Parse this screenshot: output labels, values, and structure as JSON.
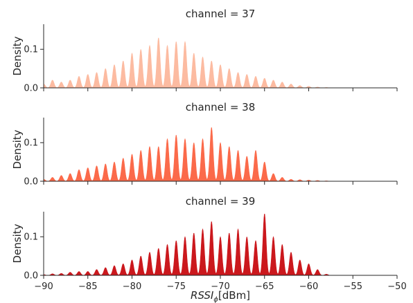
{
  "chart_data": {
    "type": "area",
    "xlabel": {
      "base": "RSSI",
      "sub": "ϕ",
      "unit": "[dBm]"
    },
    "ylabel": "Density",
    "xlim": [
      -90,
      -50
    ],
    "ylim": [
      0,
      0.165
    ],
    "xticks": [
      -90,
      -85,
      -80,
      -75,
      -70,
      -65,
      -60,
      -55,
      -50
    ],
    "yticks": [
      0.0,
      0.1
    ],
    "grid": false,
    "panels": [
      {
        "title": "channel = 37",
        "color": "#fcbba1",
        "peaks": {
          "x": [
            -90,
            -89,
            -88,
            -87,
            -86,
            -85,
            -84,
            -83,
            -82,
            -81,
            -80,
            -79,
            -78,
            -77,
            -76,
            -75,
            -74,
            -73,
            -72,
            -71,
            -70,
            -69,
            -68,
            -67,
            -66,
            -65,
            -64,
            -63,
            -62,
            -61,
            -60,
            -59,
            -58
          ],
          "y": [
            0.01,
            0.02,
            0.015,
            0.02,
            0.03,
            0.035,
            0.04,
            0.05,
            0.06,
            0.07,
            0.09,
            0.1,
            0.11,
            0.13,
            0.11,
            0.12,
            0.12,
            0.09,
            0.08,
            0.07,
            0.06,
            0.05,
            0.04,
            0.035,
            0.03,
            0.025,
            0.02,
            0.015,
            0.01,
            0.006,
            0.004,
            0.002,
            0.001
          ]
        }
      },
      {
        "title": "channel = 38",
        "color": "#fb6a4a",
        "peaks": {
          "x": [
            -90,
            -89,
            -88,
            -87,
            -86,
            -85,
            -84,
            -83,
            -82,
            -81,
            -80,
            -79,
            -78,
            -77,
            -76,
            -75,
            -74,
            -73,
            -72,
            -71,
            -70,
            -69,
            -68,
            -67,
            -66,
            -65,
            -64,
            -63,
            -62,
            -61,
            -60,
            -59,
            -58
          ],
          "y": [
            0.005,
            0.01,
            0.015,
            0.02,
            0.03,
            0.035,
            0.04,
            0.045,
            0.05,
            0.06,
            0.07,
            0.08,
            0.09,
            0.09,
            0.11,
            0.12,
            0.11,
            0.1,
            0.11,
            0.14,
            0.1,
            0.09,
            0.08,
            0.065,
            0.08,
            0.05,
            0.02,
            0.01,
            0.005,
            0.004,
            0.003,
            0.002,
            0.001
          ]
        }
      },
      {
        "title": "channel = 39",
        "color": "#cb181d",
        "peaks": {
          "x": [
            -90,
            -89,
            -88,
            -87,
            -86,
            -85,
            -84,
            -83,
            -82,
            -81,
            -80,
            -79,
            -78,
            -77,
            -76,
            -75,
            -74,
            -73,
            -72,
            -71,
            -70,
            -69,
            -68,
            -67,
            -66,
            -65,
            -64,
            -63,
            -62,
            -61,
            -60,
            -59,
            -58
          ],
          "y": [
            0.002,
            0.004,
            0.005,
            0.008,
            0.01,
            0.01,
            0.015,
            0.02,
            0.025,
            0.03,
            0.04,
            0.05,
            0.06,
            0.07,
            0.08,
            0.09,
            0.1,
            0.11,
            0.12,
            0.14,
            0.1,
            0.11,
            0.12,
            0.1,
            0.09,
            0.16,
            0.1,
            0.08,
            0.06,
            0.04,
            0.03,
            0.015,
            0.003
          ]
        }
      }
    ]
  }
}
